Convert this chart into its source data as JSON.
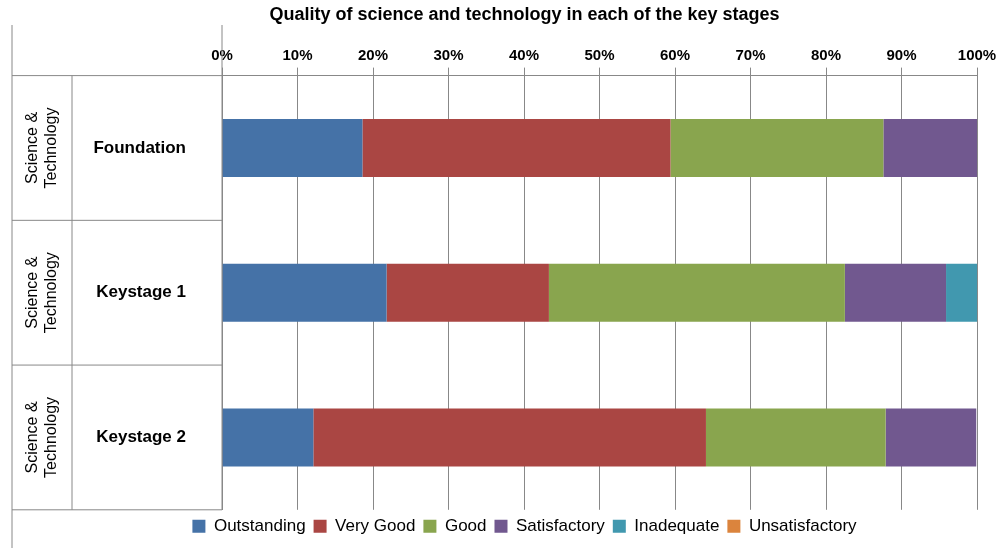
{
  "chart_data": {
    "type": "bar",
    "orientation": "horizontal",
    "stacked": true,
    "title": "Quality of science and technology in each of the key stages",
    "categories": [
      "Foundation",
      "Keystage 1",
      "Keystage 2"
    ],
    "series": [
      {
        "name": "Outstanding",
        "color": "#4572a7",
        "values": [
          18.6,
          21.8,
          12.1
        ]
      },
      {
        "name": "Very Good",
        "color": "#aa4643",
        "values": [
          40.8,
          21.5,
          52.0
        ]
      },
      {
        "name": "Good",
        "color": "#89a54e",
        "values": [
          28.2,
          39.2,
          23.8
        ]
      },
      {
        "name": "Satisfactory",
        "color": "#71588f",
        "values": [
          12.4,
          13.4,
          12.0
        ]
      },
      {
        "name": "Inadequate",
        "color": "#4198af",
        "values": [
          0,
          4.1,
          0
        ]
      },
      {
        "name": "Unsatisfactory",
        "color": "#db843d",
        "values": [
          0,
          0,
          0
        ]
      }
    ],
    "xlim": [
      0,
      100
    ],
    "xticks": [
      {
        "value": 0,
        "label": "0%"
      },
      {
        "value": 10,
        "label": "10%"
      },
      {
        "value": 20,
        "label": "20%"
      },
      {
        "value": 30,
        "label": "30%"
      },
      {
        "value": 40,
        "label": "40%"
      },
      {
        "value": 50,
        "label": "50%"
      },
      {
        "value": 60,
        "label": "60%"
      },
      {
        "value": 70,
        "label": "70%"
      },
      {
        "value": 80,
        "label": "80%"
      },
      {
        "value": 90,
        "label": "90%"
      },
      {
        "value": 100,
        "label": "100%"
      }
    ],
    "annotations": [
      "Science & Technology",
      "Science & Technology",
      "Science & Technology"
    ],
    "grid": "x",
    "legend": "bottom"
  }
}
